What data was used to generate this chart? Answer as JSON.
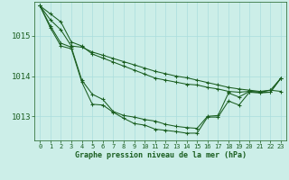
{
  "title": "Graphe pression niveau de la mer (hPa)",
  "background_color": "#cceee8",
  "grid_color": "#aadddd",
  "line_color": "#1a5e20",
  "xlim": [
    -0.5,
    23.5
  ],
  "ylim": [
    1012.4,
    1015.85
  ],
  "yticks": [
    1013,
    1014,
    1015
  ],
  "xticks": [
    0,
    1,
    2,
    3,
    4,
    5,
    6,
    7,
    8,
    9,
    10,
    11,
    12,
    13,
    14,
    15,
    16,
    17,
    18,
    19,
    20,
    21,
    22,
    23
  ],
  "series": [
    [
      1015.75,
      1015.55,
      1015.35,
      1014.85,
      1014.75,
      1014.55,
      1014.45,
      1014.35,
      1014.25,
      1014.15,
      1014.05,
      1013.95,
      1013.9,
      1013.85,
      1013.8,
      1013.78,
      1013.72,
      1013.68,
      1013.62,
      1013.6,
      1013.62,
      1013.6,
      1013.65,
      1013.62
    ],
    [
      1015.75,
      1015.4,
      1015.15,
      1014.75,
      1014.72,
      1014.6,
      1014.52,
      1014.44,
      1014.36,
      1014.28,
      1014.2,
      1014.12,
      1014.06,
      1014.0,
      1013.96,
      1013.9,
      1013.84,
      1013.78,
      1013.72,
      1013.68,
      1013.65,
      1013.62,
      1013.65,
      1013.95
    ],
    [
      1015.75,
      1015.25,
      1014.82,
      1014.72,
      1013.9,
      1013.55,
      1013.42,
      1013.12,
      1013.02,
      1012.98,
      1012.92,
      1012.88,
      1012.8,
      1012.75,
      1012.72,
      1012.7,
      1013.0,
      1013.02,
      1013.58,
      1013.48,
      1013.62,
      1013.6,
      1013.6,
      1013.95
    ],
    [
      1015.75,
      1015.2,
      1014.75,
      1014.68,
      1013.85,
      1013.3,
      1013.28,
      1013.1,
      1012.95,
      1012.82,
      1012.78,
      1012.68,
      1012.65,
      1012.62,
      1012.58,
      1012.58,
      1012.98,
      1012.98,
      1013.38,
      1013.28,
      1013.6,
      1013.58,
      1013.6,
      1013.95
    ]
  ]
}
